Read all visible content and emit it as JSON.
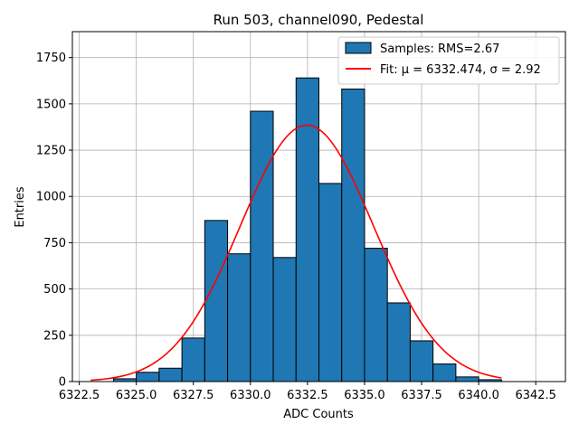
{
  "chart_data": {
    "type": "bar",
    "title": "Run 503, channel090, Pedestal",
    "xlabel": "ADC Counts",
    "ylabel": "Entries",
    "xlim": [
      6322.2,
      6343.8
    ],
    "ylim": [
      0,
      1890
    ],
    "xticks": [
      6322.5,
      6325.0,
      6327.5,
      6330.0,
      6332.5,
      6335.0,
      6337.5,
      6340.0,
      6342.5
    ],
    "xtick_labels": [
      "6322.5",
      "6325.0",
      "6327.5",
      "6330.0",
      "6332.5",
      "6335.0",
      "6337.5",
      "6340.0",
      "6342.5"
    ],
    "yticks": [
      0,
      250,
      500,
      750,
      1000,
      1250,
      1500,
      1750
    ],
    "ytick_labels": [
      "0",
      "250",
      "500",
      "750",
      "1000",
      "1250",
      "1500",
      "1750"
    ],
    "grid": true,
    "legend_position": "top-right",
    "series": [
      {
        "type": "histogram",
        "name": "Samples: RMS=2.67",
        "color": "#1f77b4",
        "edgecolor": "#000000",
        "bin_width": 1,
        "x": [
          6324,
          6325,
          6326,
          6327,
          6328,
          6329,
          6330,
          6331,
          6332,
          6333,
          6334,
          6335,
          6336,
          6337,
          6338,
          6339,
          6340
        ],
        "values": [
          15,
          50,
          72,
          235,
          870,
          690,
          1460,
          670,
          1640,
          1070,
          1580,
          720,
          425,
          220,
          95,
          25,
          10
        ]
      },
      {
        "type": "line",
        "name": "Fit: μ = 6332.474, σ = 2.92",
        "color": "#ff0000",
        "mu": 6332.474,
        "sigma": 2.92,
        "amplitude": 1385,
        "x_range": [
          6323.0,
          6341.0
        ]
      }
    ]
  }
}
